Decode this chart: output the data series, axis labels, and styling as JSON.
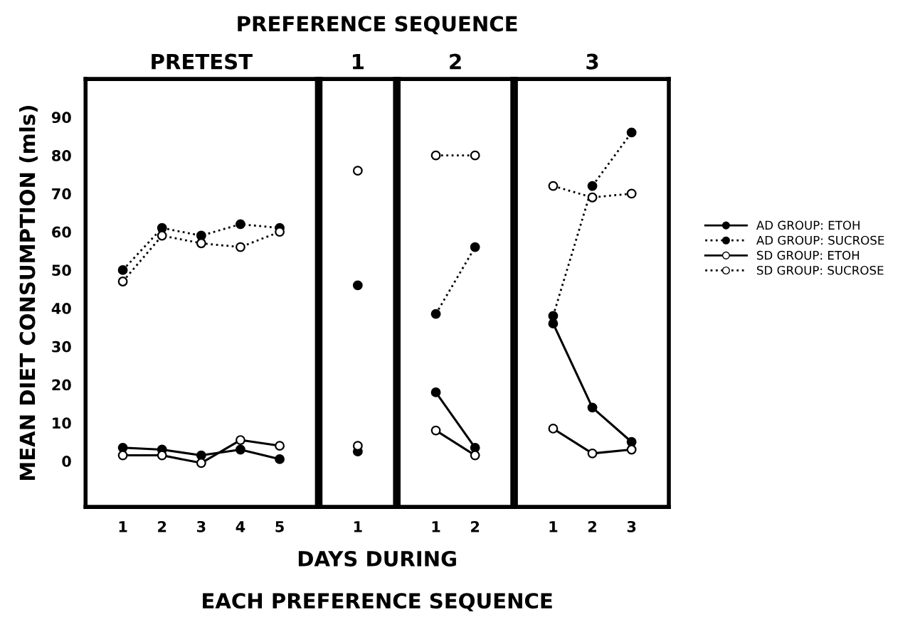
{
  "chart_data": [
    {
      "type": "line",
      "title": "PRETEST",
      "ylabel": "MEAN DIET CONSUMPTION (mls)",
      "xlabel": "DAYS DURING\nEACH PREFERENCE SEQUENCE",
      "annotations": [
        "PREFERENCE SEQUENCE"
      ],
      "categories": [
        "1",
        "2",
        "3",
        "4",
        "5"
      ],
      "ylim": [
        -12,
        100
      ],
      "yticks": [
        0,
        10,
        20,
        30,
        40,
        50,
        60,
        70,
        80,
        90
      ],
      "legend": "right",
      "marker": "circle",
      "grid": false,
      "series": [
        {
          "name": "AD GROUP: ETOH",
          "color": "#000000",
          "line_style": "solid",
          "colors": [
            "#000000",
            "#000000",
            "#000000",
            "#000000",
            "#000000"
          ],
          "values": [
            3.5,
            3,
            1.5,
            3,
            0.5
          ]
        },
        {
          "name": "AD GROUP: SUCROSE",
          "color": "#000000",
          "line_style": "dotted",
          "colors": [
            "#000000",
            "#000000",
            "#000000",
            "#000000",
            "#000000"
          ],
          "values": [
            50,
            61,
            59,
            62,
            61
          ]
        },
        {
          "name": "SD GROUP: ETOH",
          "color": "#000000",
          "line_style": "solid",
          "colors": [
            "#ffffff",
            "#ffffff",
            "#ffffff",
            "#ffffff",
            "#ffffff"
          ],
          "values": [
            1.5,
            1.5,
            -0.5,
            5.5,
            4
          ]
        },
        {
          "name": "SD GROUP: SUCROSE",
          "color": "#000000",
          "line_style": "dotted",
          "colors": [
            "#ffffff",
            "#ffffff",
            "#ffffff",
            "#ffffff",
            "#ffffff"
          ],
          "values": [
            47,
            59,
            57,
            56,
            60
          ]
        }
      ]
    },
    {
      "type": "line",
      "title": "1",
      "categories": [
        "1"
      ],
      "ylim": [
        -12,
        100
      ],
      "tick_labels": "x",
      "marker": "circle",
      "series": [
        {
          "color": "#000000",
          "line_style": "solid",
          "colors": [
            "#000000"
          ],
          "values": [
            2.5
          ]
        },
        {
          "color": "#000000",
          "line_style": "dotted",
          "colors": [
            "#000000"
          ],
          "values": [
            46
          ]
        },
        {
          "color": "#000000",
          "line_style": "solid",
          "colors": [
            "#ffffff"
          ],
          "values": [
            4
          ]
        },
        {
          "color": "#000000",
          "line_style": "dotted",
          "colors": [
            "#ffffff"
          ],
          "values": [
            76
          ]
        }
      ]
    },
    {
      "type": "line",
      "title": "2",
      "categories": [
        "1",
        "2"
      ],
      "ylim": [
        -12,
        100
      ],
      "tick_labels": "x",
      "marker": "circle",
      "series": [
        {
          "color": "#000000",
          "line_style": "solid",
          "colors": [
            "#000000",
            "#000000"
          ],
          "values": [
            18,
            3.5
          ]
        },
        {
          "color": "#000000",
          "line_style": "dotted",
          "colors": [
            "#000000",
            "#000000"
          ],
          "values": [
            38.5,
            56
          ]
        },
        {
          "color": "#000000",
          "line_style": "solid",
          "colors": [
            "#ffffff",
            "#ffffff"
          ],
          "values": [
            8,
            1.5
          ]
        },
        {
          "color": "#000000",
          "line_style": "dotted",
          "colors": [
            "#ffffff",
            "#ffffff"
          ],
          "values": [
            80,
            80
          ]
        }
      ]
    },
    {
      "type": "line",
      "title": "3",
      "categories": [
        "1",
        "2",
        "3"
      ],
      "ylim": [
        -12,
        100
      ],
      "tick_labels": "x",
      "marker": "circle",
      "series": [
        {
          "color": "#000000",
          "line_style": "solid",
          "colors": [
            "#000000",
            "#000000",
            "#000000"
          ],
          "values": [
            36,
            14,
            5
          ]
        },
        {
          "color": "#000000",
          "line_style": "dotted",
          "colors": [
            "#000000",
            "#000000",
            "#000000"
          ],
          "values": [
            38,
            72,
            86
          ]
        },
        {
          "color": "#000000",
          "line_style": "solid",
          "colors": [
            "#ffffff",
            "#ffffff",
            "#ffffff"
          ],
          "values": [
            8.5,
            2,
            3
          ]
        },
        {
          "color": "#000000",
          "line_style": "dotted",
          "colors": [
            "#ffffff",
            "#ffffff",
            "#ffffff"
          ],
          "values": [
            72,
            69,
            70
          ]
        }
      ]
    }
  ]
}
